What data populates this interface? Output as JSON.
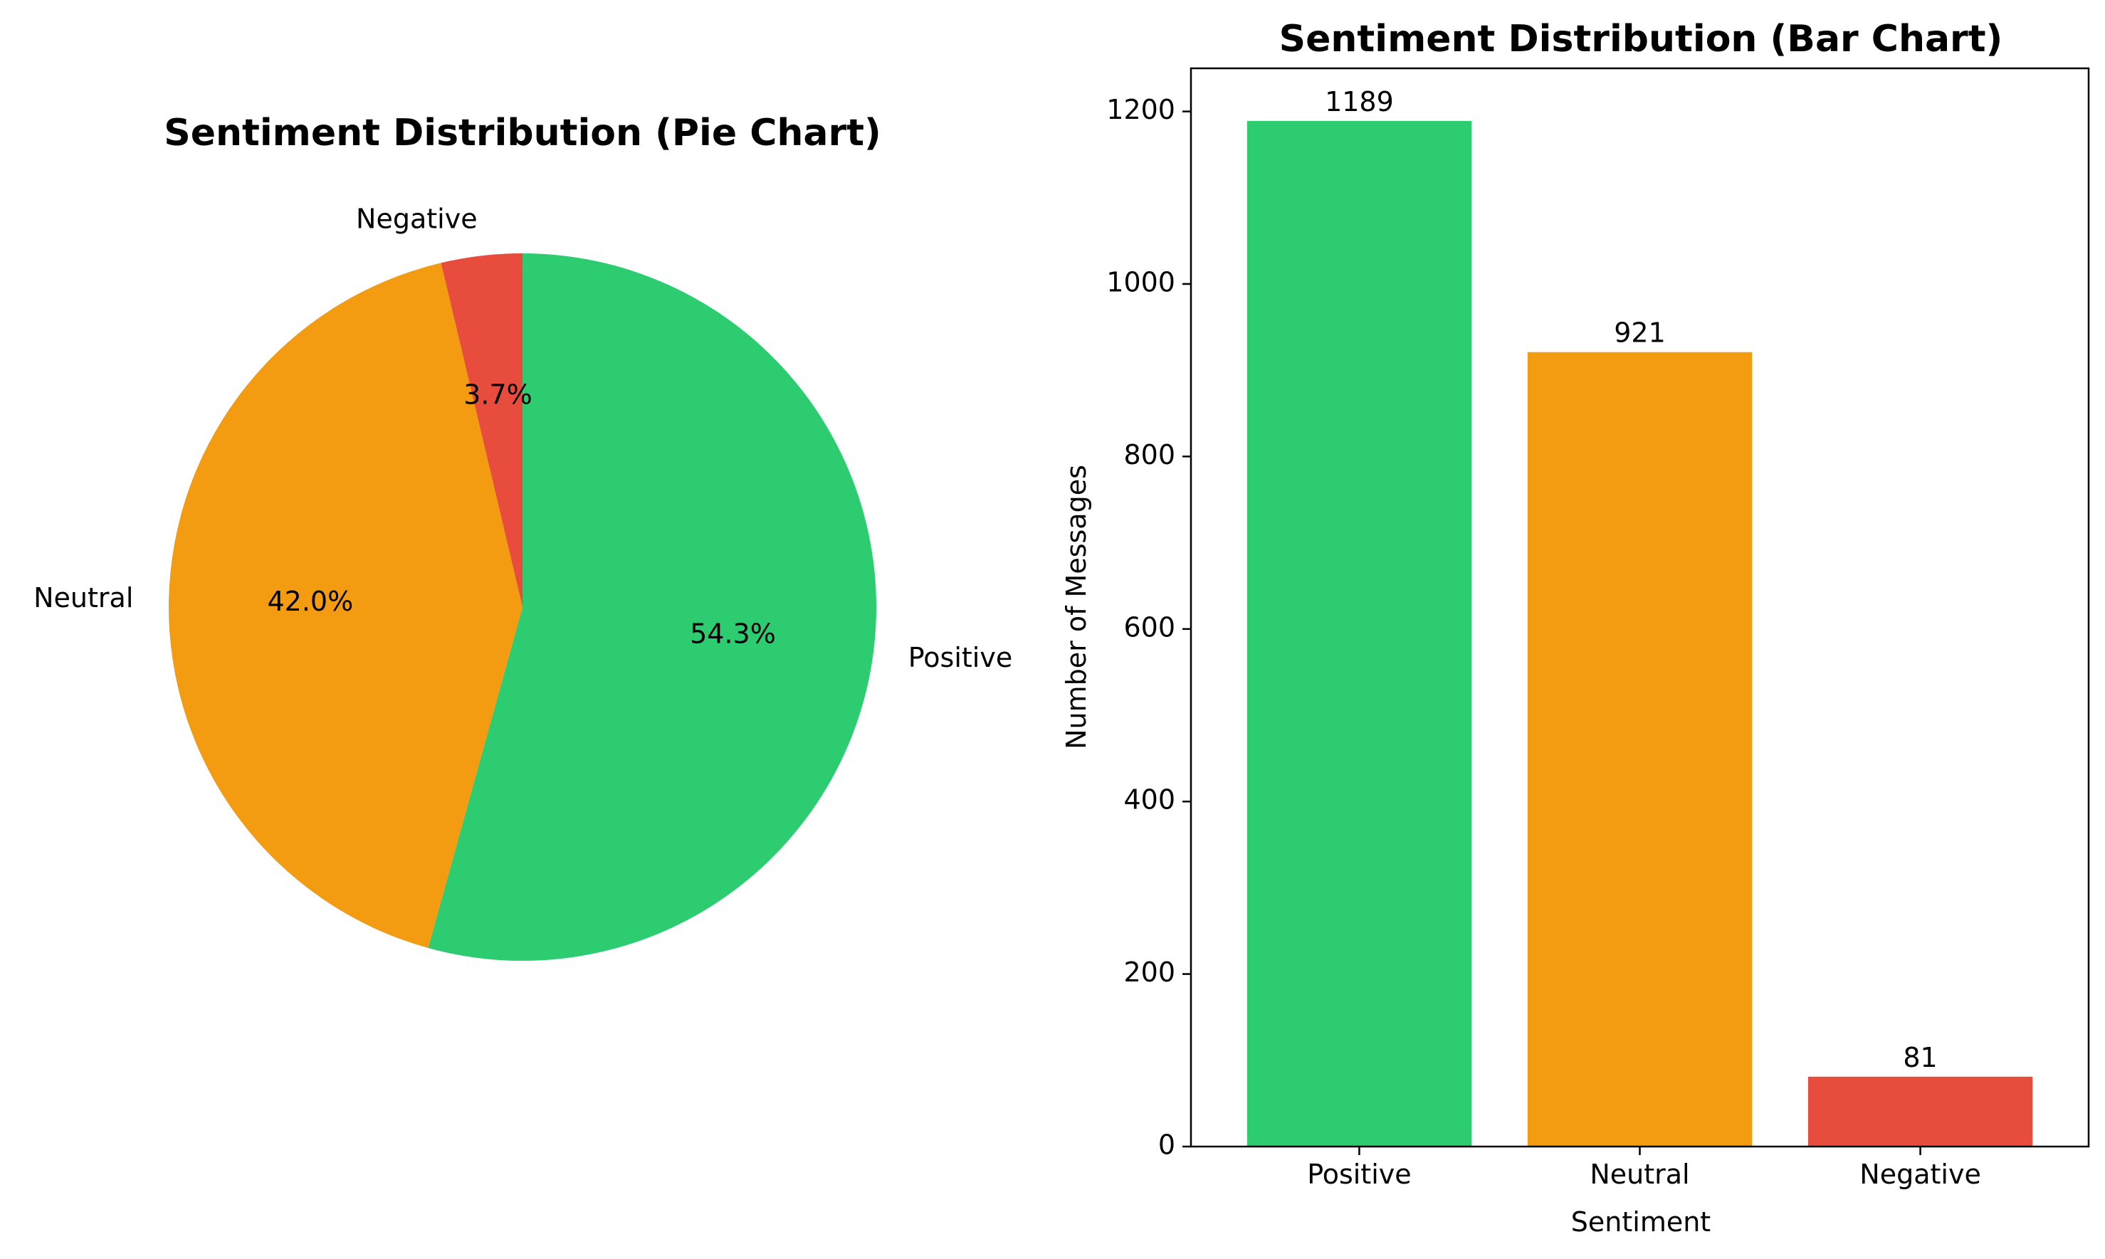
{
  "chart_data": [
    {
      "type": "pie",
      "title": "Sentiment Distribution (Pie Chart)",
      "slices": [
        {
          "label": "Positive",
          "percent": 54.3,
          "percent_label": "54.3%",
          "color": "#2ecc71"
        },
        {
          "label": "Neutral",
          "percent": 42.0,
          "percent_label": "42.0%",
          "color": "#f39c12"
        },
        {
          "label": "Negative",
          "percent": 3.7,
          "percent_label": "3.7%",
          "color": "#e74c3c"
        }
      ],
      "start_angle_deg": 90,
      "direction": "clockwise"
    },
    {
      "type": "bar",
      "title": "Sentiment Distribution (Bar Chart)",
      "categories": [
        "Positive",
        "Neutral",
        "Negative"
      ],
      "values": [
        1189,
        921,
        81
      ],
      "value_labels": [
        "1189",
        "921",
        "81"
      ],
      "colors": [
        "#2ecc71",
        "#f39c12",
        "#e74c3c"
      ],
      "xlabel": "Sentiment",
      "ylabel": "Number of Messages",
      "ylim": [
        0,
        1250
      ],
      "yticks": [
        0,
        200,
        400,
        600,
        800,
        1000,
        1200
      ],
      "ytick_labels": [
        "0",
        "200",
        "400",
        "600",
        "800",
        "1000",
        "1200"
      ],
      "grid": false
    }
  ]
}
